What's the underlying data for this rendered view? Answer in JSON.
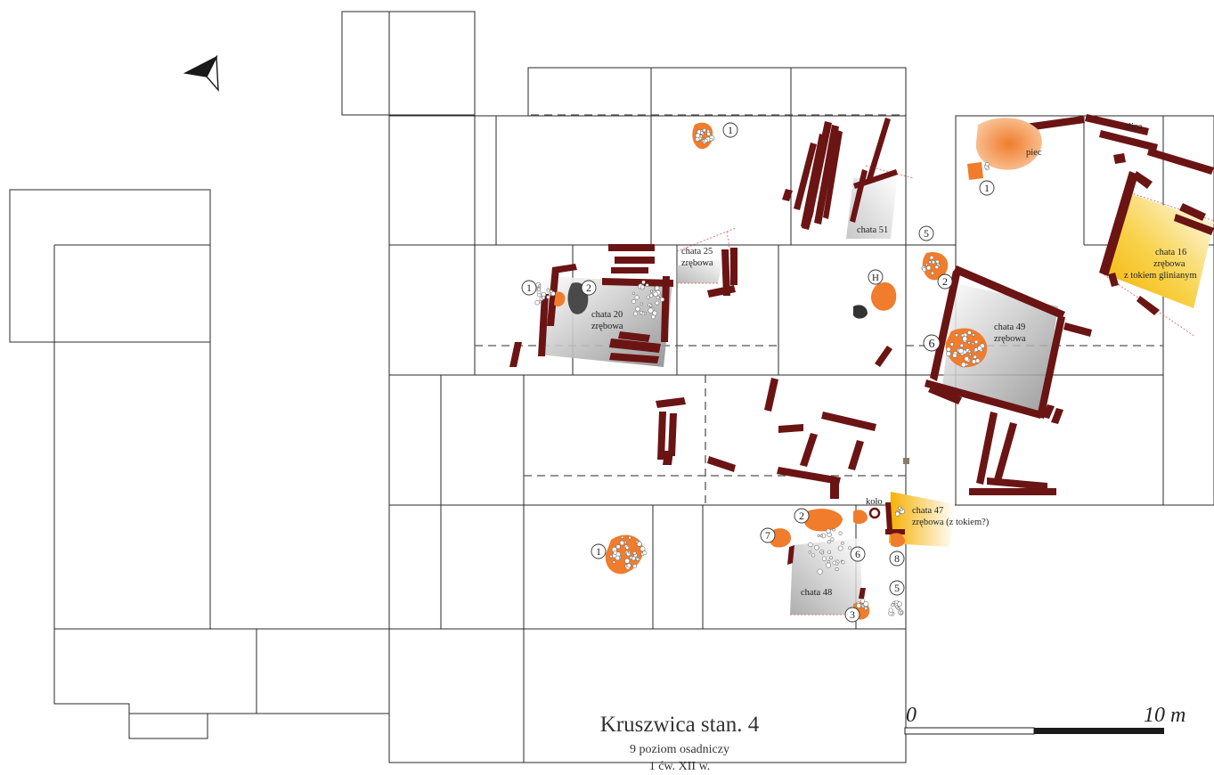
{
  "title": {
    "main": "Kruszwica stan. 4",
    "level": "9 poziom osadniczy",
    "date": "1 ćw. XII w."
  },
  "scale": {
    "start": "0",
    "end": "10 m"
  },
  "labels": {
    "ulica": "ulica",
    "piec": "piec",
    "kolo": "koło",
    "chata51": "chata 51",
    "chata25_a": "chata 25",
    "chata25_b": "zrębowa",
    "chata20_a": "chata 20",
    "chata20_b": "zrębowa",
    "chata16_a": "chata 16",
    "chata16_b": "zrębowa",
    "chata16_c": "z tokiem glinianym",
    "chata49_a": "chata 49",
    "chata49_b": "zrębowa",
    "chata47_a": "chata 47",
    "chata47_b": "zrębowa (z tokiem?)",
    "chata48": "chata 48"
  },
  "feature_numbers": {
    "n1_top": "1",
    "n1_piec": "1",
    "n5_right": "5",
    "n2_right": "2",
    "n6_right": "6",
    "nH": "H",
    "n1_c20": "1",
    "n2_c20": "2",
    "n1_low": "1",
    "n2_c48": "2",
    "n7_c48": "7",
    "n6_c48": "6",
    "n8_c48": "8",
    "n5_c48": "5",
    "n3_c48": "3"
  },
  "icons": {
    "north_arrow": "north-arrow-icon"
  },
  "colors": {
    "beam": "#6b1414",
    "pit": "#f07c2c",
    "floor_yellow": "#f5b800",
    "floor_grey": "#9a9a9a"
  }
}
